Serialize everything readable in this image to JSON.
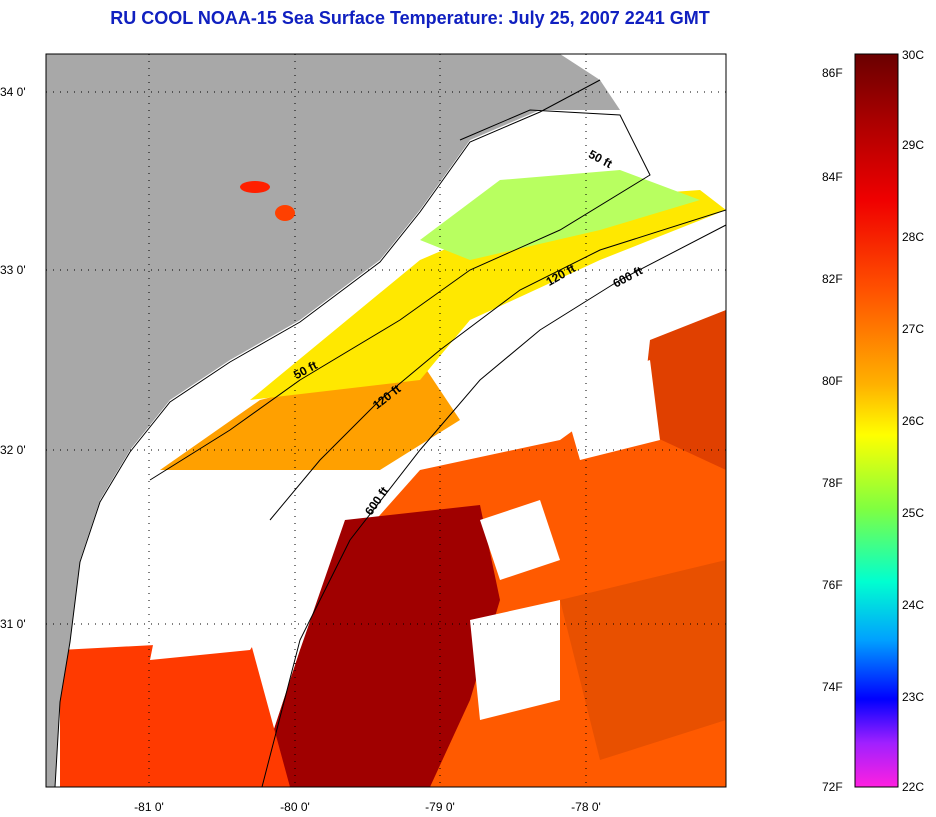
{
  "title": "RU COOL  NOAA-15  Sea Surface Temperature:  July 25, 2007 2241 GMT",
  "map": {
    "x_ticks": [
      {
        "label": "-81 0'",
        "lon": -81
      },
      {
        "label": "-80 0'",
        "lon": -80
      },
      {
        "label": "-79 0'",
        "lon": -79
      },
      {
        "label": "-78 0'",
        "lon": -78
      }
    ],
    "y_ticks": [
      {
        "label": "34 0'",
        "lat": 34
      },
      {
        "label": "33 0'",
        "lat": 33
      },
      {
        "label": "32 0'",
        "lat": 32
      },
      {
        "label": "31 0'",
        "lat": 31
      }
    ],
    "contour_labels": [
      {
        "text": "50 ft",
        "id": "contour-50ft-north"
      },
      {
        "text": "50 ft",
        "id": "contour-50ft-south"
      },
      {
        "text": "120 ft",
        "id": "contour-120ft-north"
      },
      {
        "text": "120 ft",
        "id": "contour-120ft-south"
      },
      {
        "text": "600 ft",
        "id": "contour-600ft-north"
      },
      {
        "text": "600 ft",
        "id": "contour-600ft-south"
      }
    ],
    "colors": {
      "land": "#a8a8a8",
      "no_data": "#ffffff",
      "coast": "#000000"
    }
  },
  "colorbar": {
    "fahrenheit": [
      "86F",
      "84F",
      "82F",
      "80F",
      "78F",
      "76F",
      "74F",
      "72F"
    ],
    "celsius": [
      "30C",
      "29C",
      "28C",
      "27C",
      "26C",
      "25C",
      "24C",
      "23C",
      "22C"
    ],
    "stops": [
      "#7a0000",
      "#c00000",
      "#ff2000",
      "#ff8000",
      "#ffff00",
      "#80ff40",
      "#00ffff",
      "#0080ff",
      "#0000ff",
      "#ff20ff"
    ]
  }
}
